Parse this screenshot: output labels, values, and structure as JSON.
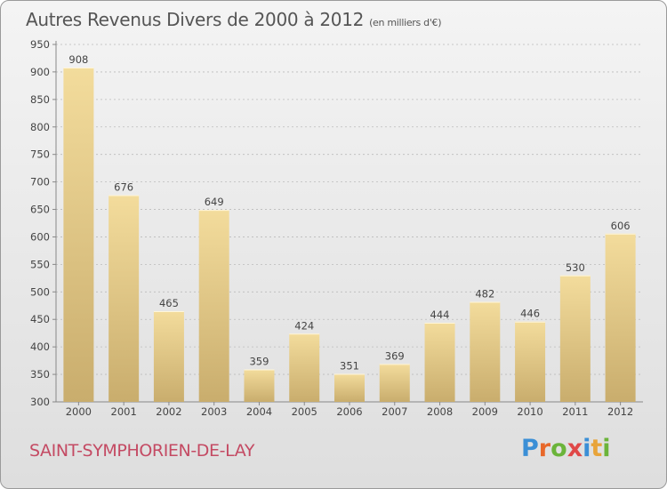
{
  "title": "Autres Revenus Divers de 2000 à 2012",
  "subtitle": "(en milliers d'€)",
  "commune": "SAINT-SYMPHORIEN-DE-LAY",
  "logo": {
    "text": "Proxiti",
    "letter_colors": [
      "#3b8fd6",
      "#e8682a",
      "#6bb43a",
      "#e04848",
      "#3b8fd6",
      "#e8a43a",
      "#6bb43a"
    ]
  },
  "colors": {
    "bar_light": "#f3dc9c",
    "bar_dark": "#c9ad6d",
    "axis": "#888888",
    "grid": "#bbbbbb"
  },
  "chart_data": {
    "type": "bar",
    "categories": [
      "2000",
      "2001",
      "2002",
      "2003",
      "2004",
      "2005",
      "2006",
      "2007",
      "2008",
      "2009",
      "2010",
      "2011",
      "2012"
    ],
    "values": [
      908,
      676,
      465,
      649,
      359,
      424,
      351,
      369,
      444,
      482,
      446,
      530,
      606
    ],
    "title": "Autres Revenus Divers de 2000 à 2012",
    "xlabel": "",
    "ylabel": "",
    "ylim": [
      300,
      950
    ],
    "yticks": [
      300,
      350,
      400,
      450,
      500,
      550,
      600,
      650,
      700,
      750,
      800,
      850,
      900,
      950
    ],
    "grid": "horizontal-dashed",
    "legend": "none"
  }
}
